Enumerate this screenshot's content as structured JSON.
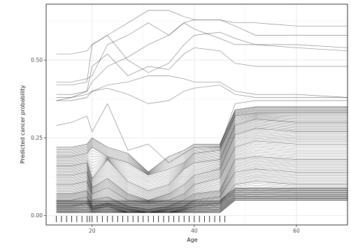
{
  "chart_data": {
    "type": "line",
    "xlabel": "Age",
    "ylabel": "Predicted cancer probability",
    "xlim": [
      11,
      70
    ],
    "ylim": [
      -0.03,
      0.68
    ],
    "x_ticks": [
      20,
      40,
      60
    ],
    "y_ticks": [
      0.0,
      0.25,
      0.5
    ],
    "x_tick_labels": [
      "20",
      "40",
      "60"
    ],
    "y_tick_labels": [
      "0.00",
      "0.25",
      "0.50"
    ],
    "grid": true,
    "legend": "none",
    "rug_x": [
      13,
      14,
      15,
      16,
      17,
      18,
      19,
      19.5,
      20,
      21,
      22,
      23,
      24,
      25,
      26,
      27,
      28,
      29,
      30,
      31,
      32,
      33,
      34,
      35,
      36,
      37,
      38,
      39,
      40,
      41,
      42,
      43,
      44,
      45,
      46
    ],
    "series": [
      {
        "x": [
          13,
          16,
          19,
          20,
          23,
          27,
          31,
          35,
          38,
          40,
          45,
          48,
          52,
          60,
          70
        ],
        "y": [
          0.52,
          0.52,
          0.53,
          0.55,
          0.58,
          0.62,
          0.66,
          0.66,
          0.64,
          0.63,
          0.63,
          0.62,
          0.62,
          0.61,
          0.61
        ]
      },
      {
        "x": [
          13,
          16,
          19,
          20,
          23,
          27,
          31,
          35,
          38,
          40,
          45,
          48,
          52,
          60,
          70
        ],
        "y": [
          0.43,
          0.43,
          0.44,
          0.45,
          0.55,
          0.58,
          0.62,
          0.58,
          0.62,
          0.63,
          0.63,
          0.61,
          0.58,
          0.58,
          0.58
        ]
      },
      {
        "x": [
          13,
          16,
          19,
          20,
          23,
          27,
          31,
          35,
          38,
          40,
          45,
          48,
          52,
          60,
          70
        ],
        "y": [
          0.42,
          0.42,
          0.43,
          0.55,
          0.58,
          0.5,
          0.46,
          0.49,
          0.55,
          0.58,
          0.59,
          0.57,
          0.55,
          0.55,
          0.54
        ]
      },
      {
        "x": [
          13,
          16,
          19,
          20,
          23,
          27,
          31,
          35,
          38,
          40,
          45,
          48,
          52,
          60,
          70
        ],
        "y": [
          0.39,
          0.39,
          0.4,
          0.43,
          0.48,
          0.51,
          0.55,
          0.58,
          0.62,
          0.6,
          0.57,
          0.55,
          0.55,
          0.54,
          0.53
        ]
      },
      {
        "x": [
          13,
          16,
          19,
          20,
          23,
          27,
          31,
          35,
          38,
          40,
          45,
          48,
          52,
          60,
          70
        ],
        "y": [
          0.37,
          0.38,
          0.4,
          0.48,
          0.52,
          0.45,
          0.48,
          0.47,
          0.52,
          0.54,
          0.53,
          0.49,
          0.48,
          0.48,
          0.48
        ]
      },
      {
        "x": [
          13,
          16,
          19,
          20,
          23,
          27,
          31,
          35,
          38,
          40,
          45,
          48,
          52,
          60,
          70
        ],
        "y": [
          0.38,
          0.38,
          0.39,
          0.4,
          0.42,
          0.43,
          0.45,
          0.45,
          0.44,
          0.43,
          0.43,
          0.4,
          0.39,
          0.39,
          0.38
        ]
      },
      {
        "x": [
          13,
          16,
          19,
          20,
          23,
          27,
          31,
          35,
          38,
          40,
          45,
          48,
          52,
          60,
          70
        ],
        "y": [
          0.37,
          0.37,
          0.38,
          0.4,
          0.41,
          0.39,
          0.36,
          0.37,
          0.4,
          0.41,
          0.42,
          0.39,
          0.38,
          0.38,
          0.38
        ]
      },
      {
        "x": [
          13,
          16,
          19,
          20,
          23,
          27,
          31,
          35,
          38,
          40,
          45,
          48,
          52,
          60,
          70
        ],
        "y": [
          0.29,
          0.3,
          0.32,
          0.27,
          0.36,
          0.21,
          0.23,
          0.17,
          0.2,
          0.22,
          0.22,
          0.36,
          0.37,
          0.37,
          0.37
        ]
      },
      {
        "x": [
          13,
          16,
          19,
          20,
          23,
          27,
          31,
          35,
          38,
          40,
          45,
          48,
          52,
          60,
          70
        ],
        "y": [
          0.22,
          0.22,
          0.23,
          0.25,
          0.22,
          0.2,
          0.14,
          0.19,
          0.21,
          0.23,
          0.23,
          0.34,
          0.35,
          0.35,
          0.35
        ]
      },
      {
        "x": [
          13,
          16,
          19,
          20,
          23,
          27,
          31,
          35,
          38,
          40,
          45,
          48,
          52,
          60,
          70
        ],
        "y": [
          0.19,
          0.19,
          0.2,
          0.22,
          0.19,
          0.17,
          0.13,
          0.15,
          0.17,
          0.2,
          0.21,
          0.32,
          0.33,
          0.33,
          0.33
        ]
      },
      {
        "x": [
          13,
          16,
          19,
          20,
          23,
          27,
          31,
          35,
          38,
          40,
          45,
          48,
          52,
          60,
          70
        ],
        "y": [
          0.16,
          0.16,
          0.17,
          0.12,
          0.18,
          0.11,
          0.08,
          0.1,
          0.15,
          0.17,
          0.18,
          0.29,
          0.31,
          0.3,
          0.3
        ]
      },
      {
        "x": [
          13,
          16,
          19,
          20,
          23,
          27,
          31,
          35,
          38,
          40,
          45,
          48,
          52,
          60,
          70
        ],
        "y": [
          0.13,
          0.13,
          0.14,
          0.09,
          0.12,
          0.07,
          0.05,
          0.07,
          0.1,
          0.13,
          0.15,
          0.26,
          0.28,
          0.27,
          0.27
        ]
      },
      {
        "x": [
          13,
          16,
          19,
          20,
          23,
          27,
          31,
          35,
          38,
          40,
          45,
          48,
          52,
          60,
          70
        ],
        "y": [
          0.1,
          0.1,
          0.11,
          0.07,
          0.09,
          0.05,
          0.04,
          0.05,
          0.07,
          0.1,
          0.12,
          0.22,
          0.24,
          0.23,
          0.23
        ]
      },
      {
        "x": [
          13,
          16,
          19,
          20,
          23,
          27,
          31,
          35,
          38,
          40,
          45,
          48,
          52,
          60,
          70
        ],
        "y": [
          0.07,
          0.07,
          0.08,
          0.05,
          0.06,
          0.03,
          0.02,
          0.03,
          0.05,
          0.07,
          0.08,
          0.18,
          0.19,
          0.18,
          0.18
        ]
      },
      {
        "x": [
          13,
          16,
          19,
          20,
          23,
          27,
          31,
          35,
          38,
          40,
          45,
          48,
          52,
          60,
          70
        ],
        "y": [
          0.05,
          0.05,
          0.06,
          0.03,
          0.04,
          0.02,
          0.01,
          0.02,
          0.03,
          0.05,
          0.06,
          0.14,
          0.15,
          0.14,
          0.14
        ]
      },
      {
        "x": [
          13,
          16,
          19,
          20,
          23,
          27,
          31,
          35,
          38,
          40,
          45,
          48,
          52,
          60,
          70
        ],
        "y": [
          0.03,
          0.03,
          0.04,
          0.02,
          0.03,
          0.01,
          0.01,
          0.01,
          0.02,
          0.03,
          0.04,
          0.1,
          0.11,
          0.1,
          0.1
        ]
      },
      {
        "x": [
          13,
          16,
          19,
          20,
          23,
          27,
          31,
          35,
          38,
          40,
          45,
          48,
          52,
          60,
          70
        ],
        "y": [
          0.01,
          0.01,
          0.01,
          0.01,
          0.01,
          0.01,
          0.01,
          0.01,
          0.01,
          0.01,
          0.01,
          0.05,
          0.05,
          0.05,
          0.05
        ]
      }
    ]
  }
}
